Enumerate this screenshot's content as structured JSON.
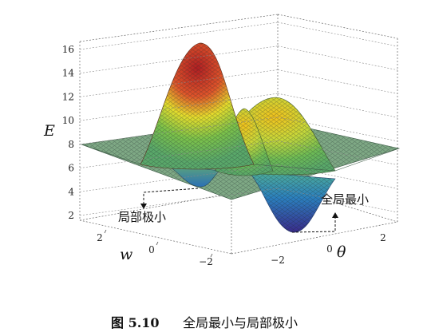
{
  "chart_data": {
    "type": "surface3d",
    "zlabel": "E",
    "xlabel": "w",
    "ylabel": "θ",
    "zlim": [
      1.5,
      16.5
    ],
    "z_ticks": [
      "2",
      "4",
      "6",
      "8",
      "10",
      "12",
      "14",
      "16"
    ],
    "w_ticks": [
      "2",
      "0",
      "−2"
    ],
    "theta_ticks": [
      "−2",
      "0",
      "2"
    ],
    "grid": true,
    "baseline": 8,
    "features": [
      {
        "kind": "global-max",
        "w": 0.6,
        "theta": -1.6,
        "z": 16
      },
      {
        "kind": "local-max",
        "w": -0.5,
        "theta": -0.3,
        "z": 12.5
      },
      {
        "kind": "local-max",
        "w": -1.5,
        "theta": -0.2,
        "z": 11.5
      },
      {
        "kind": "local-min",
        "w": -0.5,
        "theta": -2.0,
        "z": 4.5
      },
      {
        "kind": "global-min",
        "w": -1.2,
        "theta": 0.6,
        "z": 2
      }
    ],
    "annotations": {
      "local_min": "局部极小",
      "global_min": "全局最小"
    }
  },
  "caption": {
    "number": "图 5.10",
    "text": "全局最小与局部极小"
  },
  "colors": {
    "low": "#3b2a8e",
    "mid": "#2ea1b7",
    "yellow": "#e6e02c",
    "high": "#a61b20"
  }
}
